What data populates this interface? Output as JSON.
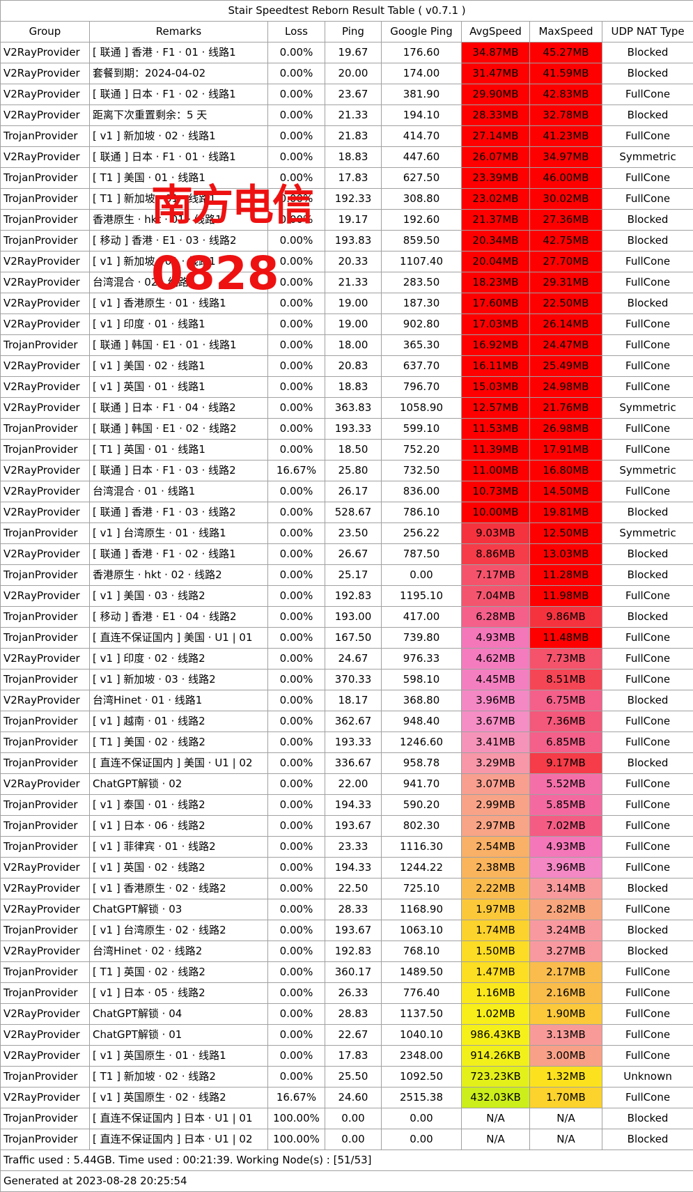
{
  "title": "Stair Speedtest Reborn Result Table ( v0.7.1 )",
  "headers": [
    "Group",
    "Remarks",
    "Loss",
    "Ping",
    "Google Ping",
    "AvgSpeed",
    "MaxSpeed",
    "UDP NAT Type"
  ],
  "rows": [
    {
      "group": "V2RayProvider",
      "remarks": "[ 联通 ] 香港 · F1 · 01 · 线路1",
      "loss": "0.00%",
      "ping": "19.67",
      "gping": "176.60",
      "avg": "34.87MB",
      "max": "45.27MB",
      "nat": "Blocked",
      "avg_color": "#ff0000",
      "max_color": "#ff0000"
    },
    {
      "group": "V2RayProvider",
      "remarks": "套餐到期：2024-04-02",
      "loss": "0.00%",
      "ping": "20.00",
      "gping": "174.00",
      "avg": "31.47MB",
      "max": "41.59MB",
      "nat": "Blocked",
      "avg_color": "#ff0000",
      "max_color": "#ff0000"
    },
    {
      "group": "V2RayProvider",
      "remarks": "[ 联通 ] 日本 · F1 · 02 · 线路1",
      "loss": "0.00%",
      "ping": "23.67",
      "gping": "381.90",
      "avg": "29.90MB",
      "max": "42.83MB",
      "nat": "FullCone",
      "avg_color": "#ff0000",
      "max_color": "#ff0000"
    },
    {
      "group": "V2RayProvider",
      "remarks": "距离下次重置剩余：5 天",
      "loss": "0.00%",
      "ping": "21.33",
      "gping": "194.10",
      "avg": "28.33MB",
      "max": "32.78MB",
      "nat": "Blocked",
      "avg_color": "#ff0000",
      "max_color": "#ff0000"
    },
    {
      "group": "TrojanProvider",
      "remarks": "[ v1 ] 新加坡 · 02 · 线路1",
      "loss": "0.00%",
      "ping": "21.83",
      "gping": "414.70",
      "avg": "27.14MB",
      "max": "41.23MB",
      "nat": "FullCone",
      "avg_color": "#ff0000",
      "max_color": "#ff0000"
    },
    {
      "group": "V2RayProvider",
      "remarks": "[ 联通 ] 日本 · F1 · 01 · 线路1",
      "loss": "0.00%",
      "ping": "18.83",
      "gping": "447.60",
      "avg": "26.07MB",
      "max": "34.97MB",
      "nat": "Symmetric",
      "avg_color": "#ff0000",
      "max_color": "#ff0000"
    },
    {
      "group": "TrojanProvider",
      "remarks": "[ T1 ] 美国 · 01 · 线路1",
      "loss": "0.00%",
      "ping": "17.83",
      "gping": "627.50",
      "avg": "23.39MB",
      "max": "46.00MB",
      "nat": "FullCone",
      "avg_color": "#ff0000",
      "max_color": "#ff0000"
    },
    {
      "group": "TrojanProvider",
      "remarks": "[ T1 ] 新加坡 · 01 · 线路1",
      "loss": "0.00%",
      "ping": "192.33",
      "gping": "308.80",
      "avg": "23.02MB",
      "max": "30.02MB",
      "nat": "FullCone",
      "avg_color": "#ff0000",
      "max_color": "#ff0000"
    },
    {
      "group": "TrojanProvider",
      "remarks": "香港原生 · hkt · 01 · 线路1",
      "loss": "0.00%",
      "ping": "19.17",
      "gping": "192.60",
      "avg": "21.37MB",
      "max": "27.36MB",
      "nat": "Blocked",
      "avg_color": "#ff0000",
      "max_color": "#ff0000"
    },
    {
      "group": "TrojanProvider",
      "remarks": "[ 移动 ] 香港 · E1 · 03 · 线路2",
      "loss": "0.00%",
      "ping": "193.83",
      "gping": "859.50",
      "avg": "20.34MB",
      "max": "42.75MB",
      "nat": "Blocked",
      "avg_color": "#ff0000",
      "max_color": "#ff0000"
    },
    {
      "group": "V2RayProvider",
      "remarks": "[ v1 ] 新加坡 · 01 · 线路1",
      "loss": "0.00%",
      "ping": "20.33",
      "gping": "1107.40",
      "avg": "20.04MB",
      "max": "27.70MB",
      "nat": "FullCone",
      "avg_color": "#ff0000",
      "max_color": "#ff0000"
    },
    {
      "group": "V2RayProvider",
      "remarks": "台湾混合 · 02 · 线路2",
      "loss": "0.00%",
      "ping": "21.33",
      "gping": "283.50",
      "avg": "18.23MB",
      "max": "29.31MB",
      "nat": "FullCone",
      "avg_color": "#ff0000",
      "max_color": "#ff0000"
    },
    {
      "group": "V2RayProvider",
      "remarks": "[ v1 ] 香港原生 · 01 · 线路1",
      "loss": "0.00%",
      "ping": "19.00",
      "gping": "187.30",
      "avg": "17.60MB",
      "max": "22.50MB",
      "nat": "Blocked",
      "avg_color": "#ff0000",
      "max_color": "#ff0000"
    },
    {
      "group": "V2RayProvider",
      "remarks": "[ v1 ] 印度 · 01 · 线路1",
      "loss": "0.00%",
      "ping": "19.00",
      "gping": "902.80",
      "avg": "17.03MB",
      "max": "26.14MB",
      "nat": "FullCone",
      "avg_color": "#ff0000",
      "max_color": "#ff0000"
    },
    {
      "group": "TrojanProvider",
      "remarks": "[ 联通 ] 韩国 · E1 · 01 · 线路1",
      "loss": "0.00%",
      "ping": "18.00",
      "gping": "365.30",
      "avg": "16.92MB",
      "max": "24.47MB",
      "nat": "FullCone",
      "avg_color": "#ff0000",
      "max_color": "#ff0000"
    },
    {
      "group": "V2RayProvider",
      "remarks": "[ v1 ] 美国 · 02 · 线路1",
      "loss": "0.00%",
      "ping": "20.83",
      "gping": "637.70",
      "avg": "16.11MB",
      "max": "25.49MB",
      "nat": "FullCone",
      "avg_color": "#ff0000",
      "max_color": "#ff0000"
    },
    {
      "group": "V2RayProvider",
      "remarks": "[ v1 ] 英国 · 01 · 线路1",
      "loss": "0.00%",
      "ping": "18.83",
      "gping": "796.70",
      "avg": "15.03MB",
      "max": "24.98MB",
      "nat": "FullCone",
      "avg_color": "#ff0000",
      "max_color": "#ff0000"
    },
    {
      "group": "V2RayProvider",
      "remarks": "[ 联通 ] 日本 · F1 · 04 · 线路2",
      "loss": "0.00%",
      "ping": "363.83",
      "gping": "1058.90",
      "avg": "12.57MB",
      "max": "21.76MB",
      "nat": "Symmetric",
      "avg_color": "#ff0000",
      "max_color": "#ff0000"
    },
    {
      "group": "TrojanProvider",
      "remarks": "[ 联通 ] 韩国 · E1 · 02 · 线路2",
      "loss": "0.00%",
      "ping": "193.33",
      "gping": "599.10",
      "avg": "11.53MB",
      "max": "26.98MB",
      "nat": "FullCone",
      "avg_color": "#ff0000",
      "max_color": "#ff0000"
    },
    {
      "group": "TrojanProvider",
      "remarks": "[ T1 ] 英国 · 01 · 线路1",
      "loss": "0.00%",
      "ping": "18.50",
      "gping": "752.20",
      "avg": "11.39MB",
      "max": "17.91MB",
      "nat": "FullCone",
      "avg_color": "#ff0000",
      "max_color": "#ff0000"
    },
    {
      "group": "V2RayProvider",
      "remarks": "[ 联通 ] 日本 · F1 · 03 · 线路2",
      "loss": "16.67%",
      "ping": "25.80",
      "gping": "732.50",
      "avg": "11.00MB",
      "max": "16.80MB",
      "nat": "Symmetric",
      "avg_color": "#ff0000",
      "max_color": "#ff0000"
    },
    {
      "group": "V2RayProvider",
      "remarks": "台湾混合 · 01 · 线路1",
      "loss": "0.00%",
      "ping": "26.17",
      "gping": "836.00",
      "avg": "10.73MB",
      "max": "14.50MB",
      "nat": "FullCone",
      "avg_color": "#ff0000",
      "max_color": "#ff0000"
    },
    {
      "group": "V2RayProvider",
      "remarks": "[ 联通 ] 香港 · F1 · 03 · 线路2",
      "loss": "0.00%",
      "ping": "528.67",
      "gping": "786.10",
      "avg": "10.00MB",
      "max": "19.81MB",
      "nat": "Blocked",
      "avg_color": "#ff0000",
      "max_color": "#ff0000"
    },
    {
      "group": "TrojanProvider",
      "remarks": "[ v1 ] 台湾原生 · 01 · 线路1",
      "loss": "0.00%",
      "ping": "23.50",
      "gping": "256.22",
      "avg": "9.03MB",
      "max": "12.50MB",
      "nat": "Symmetric",
      "avg_color": "#f5333f",
      "max_color": "#ff0000"
    },
    {
      "group": "V2RayProvider",
      "remarks": "[ 联通 ] 香港 · F1 · 02 · 线路1",
      "loss": "0.00%",
      "ping": "26.67",
      "gping": "787.50",
      "avg": "8.86MB",
      "max": "13.03MB",
      "nat": "Blocked",
      "avg_color": "#f53c48",
      "max_color": "#ff0000"
    },
    {
      "group": "TrojanProvider",
      "remarks": "香港原生 · hkt · 02 · 线路2",
      "loss": "0.00%",
      "ping": "25.17",
      "gping": "0.00",
      "avg": "7.17MB",
      "max": "11.28MB",
      "nat": "Blocked",
      "avg_color": "#f4536b",
      "max_color": "#ff0000"
    },
    {
      "group": "V2RayProvider",
      "remarks": "[ v1 ] 美国 · 03 · 线路2",
      "loss": "0.00%",
      "ping": "192.83",
      "gping": "1195.10",
      "avg": "7.04MB",
      "max": "11.98MB",
      "nat": "FullCone",
      "avg_color": "#f4556e",
      "max_color": "#ff0000"
    },
    {
      "group": "TrojanProvider",
      "remarks": "[ 移动 ] 香港 · E1 · 04 · 线路2",
      "loss": "0.00%",
      "ping": "193.00",
      "gping": "417.00",
      "avg": "6.28MB",
      "max": "9.86MB",
      "nat": "Blocked",
      "avg_color": "#f4608a",
      "max_color": "#f5333f"
    },
    {
      "group": "TrojanProvider",
      "remarks": "[ 直连不保证国内 ] 美国 · U1 | 01",
      "loss": "0.00%",
      "ping": "167.50",
      "gping": "739.80",
      "avg": "4.93MB",
      "max": "11.48MB",
      "nat": "FullCone",
      "avg_color": "#f477b9",
      "max_color": "#ff0000"
    },
    {
      "group": "V2RayProvider",
      "remarks": "[ v1 ] 印度 · 02 · 线路2",
      "loss": "0.00%",
      "ping": "24.67",
      "gping": "976.33",
      "avg": "4.62MB",
      "max": "7.73MB",
      "nat": "FullCone",
      "avg_color": "#f47cbe",
      "max_color": "#f4536b"
    },
    {
      "group": "TrojanProvider",
      "remarks": "[ v1 ] 新加坡 · 03 · 线路2",
      "loss": "0.00%",
      "ping": "370.33",
      "gping": "598.10",
      "avg": "4.45MB",
      "max": "8.51MB",
      "nat": "FullCone",
      "avg_color": "#f47fc0",
      "max_color": "#f54656"
    },
    {
      "group": "V2RayProvider",
      "remarks": "台湾Hinet · 01 · 线路1",
      "loss": "0.00%",
      "ping": "18.17",
      "gping": "368.80",
      "avg": "3.96MB",
      "max": "6.75MB",
      "nat": "Blocked",
      "avg_color": "#f488c4",
      "max_color": "#f4608a"
    },
    {
      "group": "TrojanProvider",
      "remarks": "[ v1 ] 越南 · 01 · 线路2",
      "loss": "0.00%",
      "ping": "362.67",
      "gping": "948.40",
      "avg": "3.67MB",
      "max": "7.36MB",
      "nat": "FullCone",
      "avg_color": "#f58ec4",
      "max_color": "#f4587a"
    },
    {
      "group": "TrojanProvider",
      "remarks": "[ T1 ] 美国 · 02 · 线路2",
      "loss": "0.00%",
      "ping": "193.33",
      "gping": "1246.60",
      "avg": "3.41MB",
      "max": "6.85MB",
      "nat": "FullCone",
      "avg_color": "#f693b8",
      "max_color": "#f4608a"
    },
    {
      "group": "TrojanProvider",
      "remarks": "[ 直连不保证国内 ] 美国 · U1 | 02",
      "loss": "0.00%",
      "ping": "336.67",
      "gping": "958.78",
      "avg": "3.29MB",
      "max": "9.17MB",
      "nat": "Blocked",
      "avg_color": "#f797a8",
      "max_color": "#f53c48"
    },
    {
      "group": "V2RayProvider",
      "remarks": "ChatGPT解锁 · 02",
      "loss": "0.00%",
      "ping": "22.00",
      "gping": "941.70",
      "avg": "3.07MB",
      "max": "5.52MB",
      "nat": "FullCone",
      "avg_color": "#f89f90",
      "max_color": "#f46fa8"
    },
    {
      "group": "TrojanProvider",
      "remarks": "[ v1 ] 泰国 · 01 · 线路2",
      "loss": "0.00%",
      "ping": "194.33",
      "gping": "590.20",
      "avg": "2.99MB",
      "max": "5.85MB",
      "nat": "FullCone",
      "avg_color": "#f8a388",
      "max_color": "#f46aa0"
    },
    {
      "group": "TrojanProvider",
      "remarks": "[ v1 ] 日本 · 06 · 线路2",
      "loss": "0.00%",
      "ping": "193.67",
      "gping": "802.30",
      "avg": "2.97MB",
      "max": "7.02MB",
      "nat": "FullCone",
      "avg_color": "#f8a486",
      "max_color": "#f45c84"
    },
    {
      "group": "TrojanProvider",
      "remarks": "[ v1 ] 菲律宾 · 01 · 线路2",
      "loss": "0.00%",
      "ping": "23.33",
      "gping": "1116.30",
      "avg": "2.54MB",
      "max": "4.93MB",
      "nat": "FullCone",
      "avg_color": "#f9b067",
      "max_color": "#f477b9"
    },
    {
      "group": "V2RayProvider",
      "remarks": "[ v1 ] 英国 · 02 · 线路2",
      "loss": "0.00%",
      "ping": "194.33",
      "gping": "1244.22",
      "avg": "2.38MB",
      "max": "3.96MB",
      "nat": "FullCone",
      "avg_color": "#f9b45c",
      "max_color": "#f488c4"
    },
    {
      "group": "V2RayProvider",
      "remarks": "[ v1 ] 香港原生 · 02 · 线路2",
      "loss": "0.00%",
      "ping": "22.50",
      "gping": "725.10",
      "avg": "2.22MB",
      "max": "3.14MB",
      "nat": "Blocked",
      "avg_color": "#fabb4e",
      "max_color": "#f89a9c"
    },
    {
      "group": "V2RayProvider",
      "remarks": "ChatGPT解锁 · 03",
      "loss": "0.00%",
      "ping": "28.33",
      "gping": "1168.90",
      "avg": "1.97MB",
      "max": "2.82MB",
      "nat": "FullCone",
      "avg_color": "#fbc83a",
      "max_color": "#f8a67e"
    },
    {
      "group": "TrojanProvider",
      "remarks": "[ v1 ] 台湾原生 · 02 · 线路2",
      "loss": "0.00%",
      "ping": "193.67",
      "gping": "1063.10",
      "avg": "1.74MB",
      "max": "3.24MB",
      "nat": "Blocked",
      "avg_color": "#fcd22c",
      "max_color": "#f8999f"
    },
    {
      "group": "V2RayProvider",
      "remarks": "台湾Hinet · 02 · 线路2",
      "loss": "0.00%",
      "ping": "192.83",
      "gping": "768.10",
      "avg": "1.50MB",
      "max": "3.27MB",
      "nat": "Blocked",
      "avg_color": "#fcdc24",
      "max_color": "#f8999f"
    },
    {
      "group": "TrojanProvider",
      "remarks": "[ T1 ] 英国 · 02 · 线路2",
      "loss": "0.00%",
      "ping": "360.17",
      "gping": "1489.50",
      "avg": "1.47MB",
      "max": "2.17MB",
      "nat": "FullCone",
      "avg_color": "#fcde22",
      "max_color": "#fabc4c"
    },
    {
      "group": "TrojanProvider",
      "remarks": "[ v1 ] 日本 · 05 · 线路2",
      "loss": "0.00%",
      "ping": "26.33",
      "gping": "776.40",
      "avg": "1.16MB",
      "max": "2.16MB",
      "nat": "FullCone",
      "avg_color": "#fbe81c",
      "max_color": "#fabd4a"
    },
    {
      "group": "V2RayProvider",
      "remarks": "ChatGPT解锁 · 04",
      "loss": "0.00%",
      "ping": "28.83",
      "gping": "1137.50",
      "avg": "1.02MB",
      "max": "1.90MB",
      "nat": "FullCone",
      "avg_color": "#f8ee1a",
      "max_color": "#fbc93a"
    },
    {
      "group": "V2RayProvider",
      "remarks": "ChatGPT解锁 · 01",
      "loss": "0.00%",
      "ping": "22.67",
      "gping": "1040.10",
      "avg": "986.43KB",
      "max": "3.13MB",
      "nat": "FullCone",
      "avg_color": "#f6f01a",
      "max_color": "#f89b98"
    },
    {
      "group": "V2RayProvider",
      "remarks": "[ v1 ] 英国原生 · 01 · 线路1",
      "loss": "0.00%",
      "ping": "17.83",
      "gping": "2348.00",
      "avg": "914.26KB",
      "max": "3.00MB",
      "nat": "FullCone",
      "avg_color": "#f2f01a",
      "max_color": "#f8a188"
    },
    {
      "group": "TrojanProvider",
      "remarks": "[ T1 ] 新加坡 · 02 · 线路2",
      "loss": "0.00%",
      "ping": "25.50",
      "gping": "1092.50",
      "avg": "723.23KB",
      "max": "1.32MB",
      "nat": "Unknown",
      "avg_color": "#e4f01a",
      "max_color": "#fce21e"
    },
    {
      "group": "V2RayProvider",
      "remarks": "[ v1 ] 英国原生 · 02 · 线路2",
      "loss": "16.67%",
      "ping": "24.60",
      "gping": "2515.38",
      "avg": "432.03KB",
      "max": "1.70MB",
      "nat": "FullCone",
      "avg_color": "#ccee1a",
      "max_color": "#fcd22c"
    },
    {
      "group": "TrojanProvider",
      "remarks": "[ 直连不保证国内 ] 日本 · U1 | 01",
      "loss": "100.00%",
      "ping": "0.00",
      "gping": "0.00",
      "avg": "N/A",
      "max": "N/A",
      "nat": "Blocked",
      "avg_color": "#ffffff",
      "max_color": "#ffffff"
    },
    {
      "group": "TrojanProvider",
      "remarks": "[ 直连不保证国内 ] 日本 · U1 | 02",
      "loss": "100.00%",
      "ping": "0.00",
      "gping": "0.00",
      "avg": "N/A",
      "max": "N/A",
      "nat": "Blocked",
      "avg_color": "#ffffff",
      "max_color": "#ffffff"
    }
  ],
  "footer": {
    "traffic": "Traffic used : 5.44GB. Time used : 00:21:39. Working Node(s) : [51/53]",
    "generated": "Generated at 2023-08-28 20:25:54"
  },
  "watermark": {
    "line1": "南方电信",
    "line2": "0828",
    "color": "#ee1111"
  }
}
